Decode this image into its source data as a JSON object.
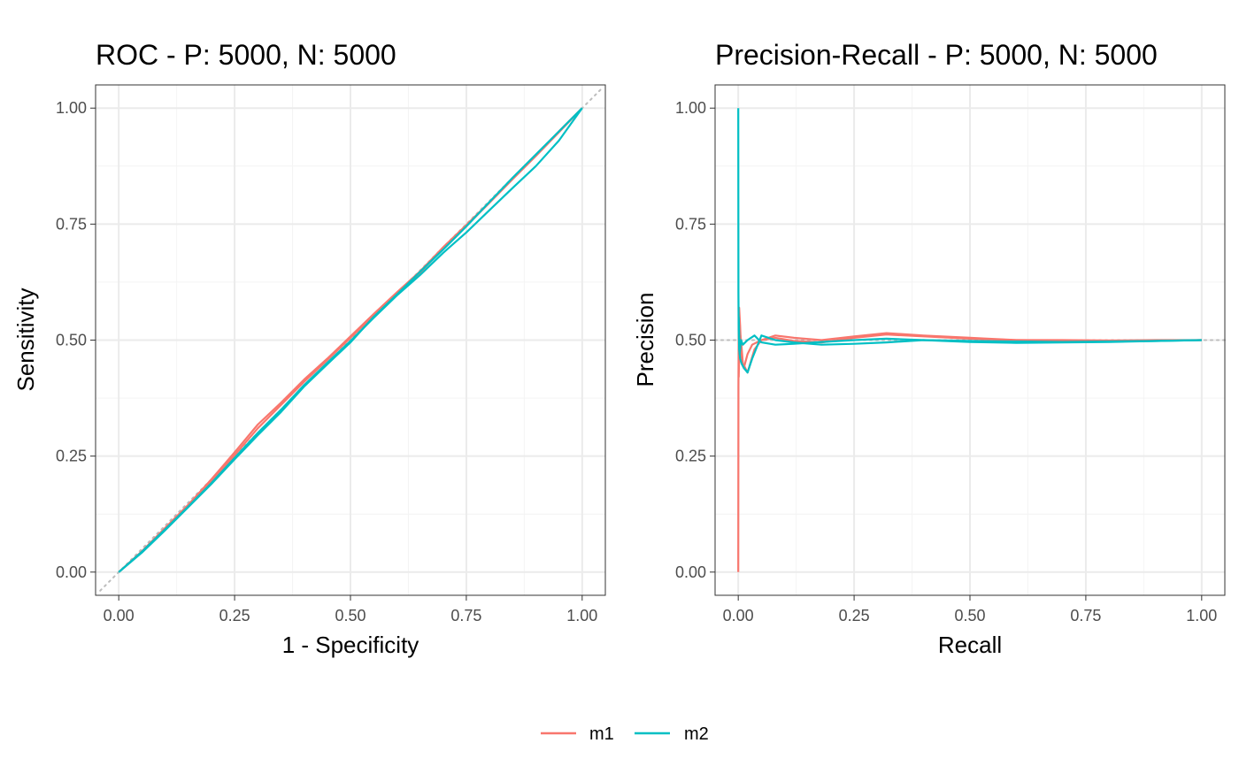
{
  "colors": {
    "m1": "#f8766d",
    "m2": "#00bfc4",
    "reference": "#bdbdbd",
    "grid_major": "#ebebeb",
    "grid_minor": "#f4f4f4",
    "panel_border": "#333333",
    "tick_text": "#4d4d4d"
  },
  "legend": {
    "position": "bottom",
    "items": [
      {
        "label": "m1",
        "color": "#f8766d"
      },
      {
        "label": "m2",
        "color": "#00bfc4"
      }
    ]
  },
  "chart_data": [
    {
      "type": "line",
      "title": "ROC - P: 5000, N: 5000",
      "xlabel": "1 - Specificity",
      "ylabel": "Sensitivity",
      "xlim": [
        -0.05,
        1.05
      ],
      "ylim": [
        -0.05,
        1.05
      ],
      "x_ticks": [
        "0.00",
        "0.25",
        "0.50",
        "0.75",
        "1.00"
      ],
      "y_ticks": [
        "0.00",
        "0.25",
        "0.50",
        "0.75",
        "1.00"
      ],
      "grid": true,
      "reference_line": {
        "style": "dotted",
        "x": [
          -0.04,
          1.04
        ],
        "y": [
          -0.04,
          1.04
        ]
      },
      "series": [
        {
          "name": "m1",
          "color": "#f8766d",
          "x": [
            0,
            0.05,
            0.1,
            0.15,
            0.2,
            0.25,
            0.3,
            0.35,
            0.4,
            0.45,
            0.5,
            0.55,
            0.6,
            0.65,
            0.7,
            0.75,
            0.8,
            0.85,
            0.9,
            0.95,
            1.0
          ],
          "y": [
            0,
            0.045,
            0.095,
            0.145,
            0.2,
            0.258,
            0.318,
            0.365,
            0.415,
            0.46,
            0.508,
            0.556,
            0.603,
            0.648,
            0.7,
            0.748,
            0.797,
            0.848,
            0.898,
            0.95,
            1.0
          ]
        },
        {
          "name": "m1",
          "color": "#f8766d",
          "x": [
            0,
            0.05,
            0.1,
            0.15,
            0.2,
            0.25,
            0.3,
            0.35,
            0.4,
            0.45,
            0.5,
            0.55,
            0.6,
            0.65,
            0.7,
            0.75,
            0.8,
            0.85,
            0.9,
            0.95,
            1.0
          ],
          "y": [
            0,
            0.043,
            0.093,
            0.142,
            0.196,
            0.252,
            0.31,
            0.36,
            0.41,
            0.457,
            0.505,
            0.553,
            0.6,
            0.645,
            0.697,
            0.746,
            0.796,
            0.847,
            0.897,
            0.948,
            1.0
          ]
        },
        {
          "name": "m2",
          "color": "#00bfc4",
          "x": [
            0,
            0.05,
            0.1,
            0.15,
            0.2,
            0.25,
            0.3,
            0.35,
            0.4,
            0.45,
            0.5,
            0.55,
            0.6,
            0.65,
            0.7,
            0.75,
            0.8,
            0.85,
            0.9,
            0.95,
            1.0
          ],
          "y": [
            0,
            0.042,
            0.09,
            0.14,
            0.19,
            0.243,
            0.295,
            0.345,
            0.4,
            0.448,
            0.495,
            0.55,
            0.598,
            0.647,
            0.695,
            0.745,
            0.798,
            0.85,
            0.9,
            0.95,
            1.0
          ]
        },
        {
          "name": "m2",
          "color": "#00bfc4",
          "x": [
            0,
            0.05,
            0.1,
            0.15,
            0.2,
            0.25,
            0.3,
            0.35,
            0.4,
            0.45,
            0.5,
            0.55,
            0.6,
            0.65,
            0.7,
            0.75,
            0.8,
            0.85,
            0.9,
            0.95,
            1.0
          ],
          "y": [
            0,
            0.044,
            0.092,
            0.141,
            0.192,
            0.246,
            0.3,
            0.35,
            0.403,
            0.451,
            0.498,
            0.548,
            0.596,
            0.64,
            0.688,
            0.732,
            0.78,
            0.828,
            0.875,
            0.93,
            1.0
          ]
        }
      ]
    },
    {
      "type": "line",
      "title": "Precision-Recall - P: 5000, N: 5000",
      "xlabel": "Recall",
      "ylabel": "Precision",
      "xlim": [
        -0.05,
        1.05
      ],
      "ylim": [
        -0.05,
        1.05
      ],
      "x_ticks": [
        "0.00",
        "0.25",
        "0.50",
        "0.75",
        "1.00"
      ],
      "y_ticks": [
        "0.00",
        "0.25",
        "0.50",
        "0.75",
        "1.00"
      ],
      "grid": true,
      "reference_line": {
        "style": "dotted",
        "x": [
          -0.05,
          1.05
        ],
        "y": [
          0.5,
          0.5
        ]
      },
      "series": [
        {
          "name": "m1",
          "color": "#f8766d",
          "x": [
            0,
            0.0005,
            0.001,
            0.002,
            0.004,
            0.007,
            0.012,
            0.02,
            0.03,
            0.05,
            0.08,
            0.12,
            0.18,
            0.25,
            0.32,
            0.4,
            0.5,
            0.6,
            0.7,
            0.8,
            0.9,
            1.0
          ],
          "y": [
            0,
            0.4,
            0.5,
            0.57,
            0.53,
            0.46,
            0.44,
            0.47,
            0.49,
            0.5,
            0.51,
            0.505,
            0.5,
            0.508,
            0.515,
            0.51,
            0.505,
            0.5,
            0.5,
            0.499,
            0.5,
            0.5
          ]
        },
        {
          "name": "m1",
          "color": "#f8766d",
          "x": [
            0.001,
            0.003,
            0.006,
            0.01,
            0.02,
            0.035,
            0.05,
            0.08,
            0.12,
            0.18,
            0.25,
            0.32,
            0.4,
            0.5,
            0.6,
            0.7,
            0.8,
            0.9,
            1.0
          ],
          "y": [
            0.42,
            0.52,
            0.5,
            0.45,
            0.43,
            0.48,
            0.5,
            0.505,
            0.498,
            0.495,
            0.505,
            0.512,
            0.508,
            0.503,
            0.5,
            0.499,
            0.498,
            0.499,
            0.5
          ]
        },
        {
          "name": "m2",
          "color": "#00bfc4",
          "x": [
            0,
            0.0005,
            0.001,
            0.002,
            0.004,
            0.007,
            0.012,
            0.02,
            0.03,
            0.05,
            0.08,
            0.12,
            0.18,
            0.25,
            0.32,
            0.4,
            0.5,
            0.6,
            0.7,
            0.8,
            0.9,
            1.0
          ],
          "y": [
            1.0,
            0.6,
            0.52,
            0.48,
            0.46,
            0.45,
            0.44,
            0.43,
            0.46,
            0.51,
            0.5,
            0.495,
            0.49,
            0.492,
            0.495,
            0.5,
            0.498,
            0.497,
            0.496,
            0.497,
            0.498,
            0.5
          ]
        },
        {
          "name": "m2",
          "color": "#00bfc4",
          "x": [
            0.001,
            0.003,
            0.006,
            0.01,
            0.02,
            0.035,
            0.05,
            0.08,
            0.12,
            0.18,
            0.25,
            0.32,
            0.4,
            0.5,
            0.6,
            0.7,
            0.8,
            0.9,
            1.0
          ],
          "y": [
            0.55,
            0.47,
            0.5,
            0.49,
            0.5,
            0.51,
            0.495,
            0.49,
            0.492,
            0.496,
            0.5,
            0.503,
            0.5,
            0.496,
            0.494,
            0.495,
            0.496,
            0.498,
            0.5
          ]
        }
      ]
    }
  ]
}
